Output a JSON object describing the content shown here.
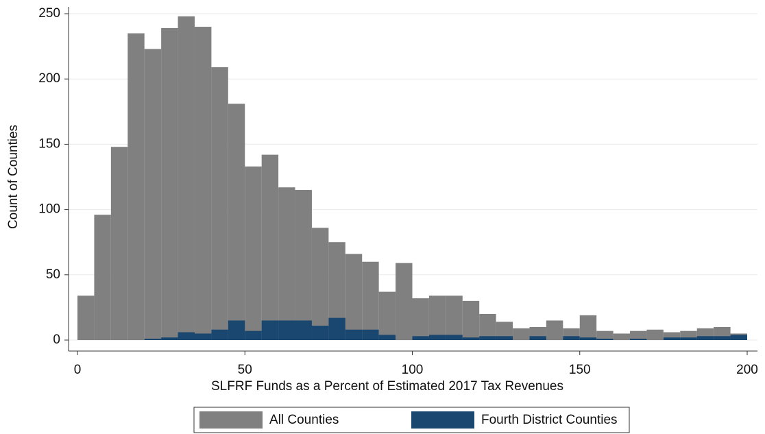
{
  "chart_data": {
    "type": "histogram",
    "xlabel": "SLFRF Funds as a Percent of Estimated 2017 Tax Revenues",
    "ylabel": "Count of Counties",
    "bins": [
      0,
      5,
      10,
      15,
      20,
      25,
      30,
      35,
      40,
      45,
      50,
      55,
      60,
      65,
      70,
      75,
      80,
      85,
      90,
      95,
      100,
      105,
      110,
      115,
      120,
      125,
      130,
      135,
      140,
      145,
      150,
      155,
      160,
      165,
      170,
      175,
      180,
      185,
      190,
      195,
      200
    ],
    "series": [
      {
        "name": "All Counties",
        "color": "#808080",
        "values": [
          34,
          96,
          148,
          235,
          223,
          239,
          248,
          240,
          209,
          181,
          133,
          142,
          117,
          115,
          86,
          75,
          66,
          60,
          37,
          59,
          32,
          34,
          34,
          30,
          20,
          14,
          9,
          10,
          15,
          9,
          19,
          7,
          5,
          7,
          8,
          6,
          7,
          9,
          10,
          5
        ]
      },
      {
        "name": "Fourth District Counties",
        "color": "#1a476f",
        "values": [
          0,
          0,
          0,
          0,
          1,
          2,
          6,
          5,
          8,
          15,
          7,
          15,
          15,
          15,
          11,
          17,
          8,
          8,
          4,
          0,
          3,
          4,
          4,
          2,
          3,
          3,
          0,
          3,
          0,
          3,
          2,
          1,
          0,
          1,
          0,
          2,
          2,
          3,
          3,
          4
        ]
      }
    ],
    "xlim": [
      0,
      200
    ],
    "xticks": [
      0,
      50,
      100,
      150,
      200
    ],
    "ylim": [
      0,
      250
    ],
    "yticks": [
      0,
      50,
      100,
      150,
      200,
      250
    ],
    "grid": true,
    "legend": "bottom"
  }
}
